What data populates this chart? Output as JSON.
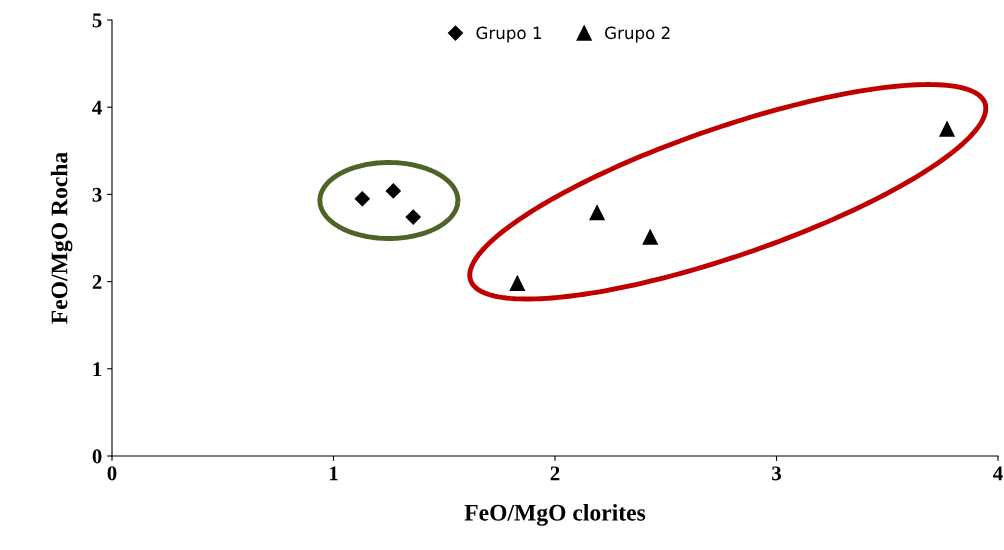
{
  "chart_data": {
    "type": "scatter",
    "xlabel": "FeO/MgO clorites",
    "ylabel": "FeO/MgO Rocha",
    "xlim": [
      0,
      4
    ],
    "ylim": [
      0,
      5
    ],
    "xticks": [
      0,
      1,
      2,
      3,
      4
    ],
    "yticks": [
      0,
      1,
      2,
      3,
      4,
      5
    ],
    "grid": false,
    "legend": "top",
    "series": [
      {
        "name": "Grupo 1",
        "color": "#000000",
        "marker": "diamond",
        "x": [
          1.13,
          1.27,
          1.36
        ],
        "values": [
          2.95,
          3.04,
          2.74
        ]
      },
      {
        "name": "Grupo 2",
        "color": "#000000",
        "marker": "triangle",
        "x": [
          1.83,
          2.19,
          2.43,
          3.77
        ],
        "values": [
          1.98,
          2.79,
          2.51,
          3.75
        ]
      }
    ]
  }
}
